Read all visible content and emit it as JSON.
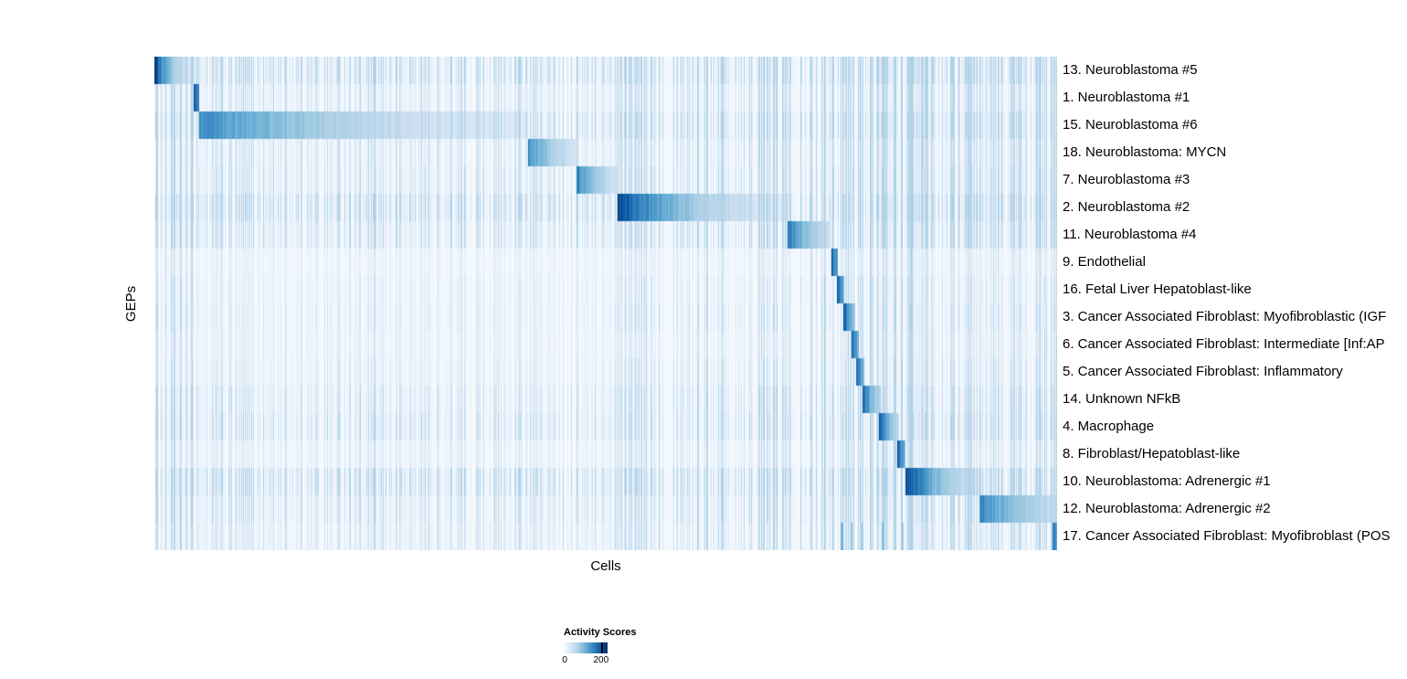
{
  "chart_data": {
    "type": "heatmap",
    "title": "",
    "xlabel": "Cells",
    "ylabel": "GEPs",
    "colormap": "Blues",
    "colormap_colors": [
      "#f7fbff",
      "#deebf7",
      "#c6dbef",
      "#9ecae1",
      "#6baed6",
      "#4292c6",
      "#2171b5",
      "#08519c",
      "#08306b"
    ],
    "colorbar": {
      "title": "Activity Scores",
      "tick_labels": [
        "0",
        "200"
      ],
      "ticks": [
        0,
        200
      ],
      "vmin": 0,
      "vmax": 235
    },
    "rows": [
      {
        "label": "13. Neuroblastoma #5",
        "block_start": 0.0,
        "block_end": 0.054,
        "peak": 225,
        "end": 18,
        "noise": 0.9
      },
      {
        "label": "1. Neuroblastoma #1",
        "block_start": 0.044,
        "block_end": 0.05,
        "peak": 210,
        "end": 150,
        "noise": 0.5
      },
      {
        "label": "15. Neuroblastoma #6",
        "block_start": 0.05,
        "block_end": 0.414,
        "peak": 150,
        "end": 28,
        "noise": 0.85
      },
      {
        "label": "18. Neuroblastoma: MYCN",
        "block_start": 0.414,
        "block_end": 0.468,
        "peak": 155,
        "end": 40,
        "noise": 0.5
      },
      {
        "label": "7. Neuroblastoma #3",
        "block_start": 0.468,
        "block_end": 0.513,
        "peak": 160,
        "end": 42,
        "noise": 0.55
      },
      {
        "label": "2. Neuroblastoma #2",
        "block_start": 0.513,
        "block_end": 0.701,
        "peak": 215,
        "end": 28,
        "noise": 1.0
      },
      {
        "label": "11. Neuroblastoma #4",
        "block_start": 0.701,
        "block_end": 0.749,
        "peak": 170,
        "end": 48,
        "noise": 0.6
      },
      {
        "label": "9. Endothelial",
        "block_start": 0.75,
        "block_end": 0.757,
        "peak": 200,
        "end": 120,
        "noise": 0.25
      },
      {
        "label": "16. Fetal Liver Hepatoblast-like",
        "block_start": 0.756,
        "block_end": 0.764,
        "peak": 205,
        "end": 120,
        "noise": 0.3
      },
      {
        "label": "3. Cancer Associated Fibroblast: Myofibroblastic (IGF",
        "block_start": 0.763,
        "block_end": 0.776,
        "peak": 215,
        "end": 90,
        "noise": 0.35
      },
      {
        "label": "6. Cancer Associated Fibroblast: Intermediate [Inf:AP",
        "block_start": 0.772,
        "block_end": 0.78,
        "peak": 200,
        "end": 115,
        "noise": 0.3
      },
      {
        "label": "5. Cancer Associated Fibroblast: Inflammatory",
        "block_start": 0.777,
        "block_end": 0.786,
        "peak": 200,
        "end": 100,
        "noise": 0.35
      },
      {
        "label": "14. Unknown NFkB",
        "block_start": 0.784,
        "block_end": 0.805,
        "peak": 190,
        "end": 65,
        "noise": 0.5
      },
      {
        "label": "4. Macrophage",
        "block_start": 0.803,
        "block_end": 0.825,
        "peak": 200,
        "end": 60,
        "noise": 0.6
      },
      {
        "label": "8. Fibroblast/Hepatoblast-like",
        "block_start": 0.823,
        "block_end": 0.832,
        "peak": 200,
        "end": 105,
        "noise": 0.35
      },
      {
        "label": "10. Neuroblastoma: Adrenergic #1",
        "block_start": 0.832,
        "block_end": 0.915,
        "peak": 215,
        "end": 40,
        "noise": 0.9
      },
      {
        "label": "12. Neuroblastoma: Adrenergic #2",
        "block_start": 0.914,
        "block_end": 1.0,
        "peak": 150,
        "end": 55,
        "noise": 0.55
      },
      {
        "label": "17. Cancer Associated Fibroblast: Myofibroblast (POS",
        "block_start": 0.995,
        "block_end": 1.0,
        "peak": 180,
        "end": 140,
        "noise": 0.45
      }
    ],
    "noise_regions": [
      [
        0.0,
        0.05,
        1.6
      ],
      [
        0.05,
        0.42,
        1.0
      ],
      [
        0.42,
        0.51,
        0.9
      ],
      [
        0.51,
        0.7,
        1.8
      ],
      [
        0.7,
        0.76,
        2.2
      ],
      [
        0.76,
        0.84,
        2.6
      ],
      [
        0.84,
        0.92,
        1.4
      ],
      [
        0.92,
        1.0,
        1.7
      ]
    ],
    "extra_marks": [
      {
        "row": 17,
        "frac": 0.76,
        "width": 0.003,
        "score": 110
      },
      {
        "row": 17,
        "frac": 0.771,
        "width": 0.002,
        "score": 95
      },
      {
        "row": 17,
        "frac": 0.783,
        "width": 0.002,
        "score": 85
      },
      {
        "row": 17,
        "frac": 0.806,
        "width": 0.003,
        "score": 100
      },
      {
        "row": 17,
        "frac": 0.828,
        "width": 0.002,
        "score": 90
      }
    ]
  }
}
